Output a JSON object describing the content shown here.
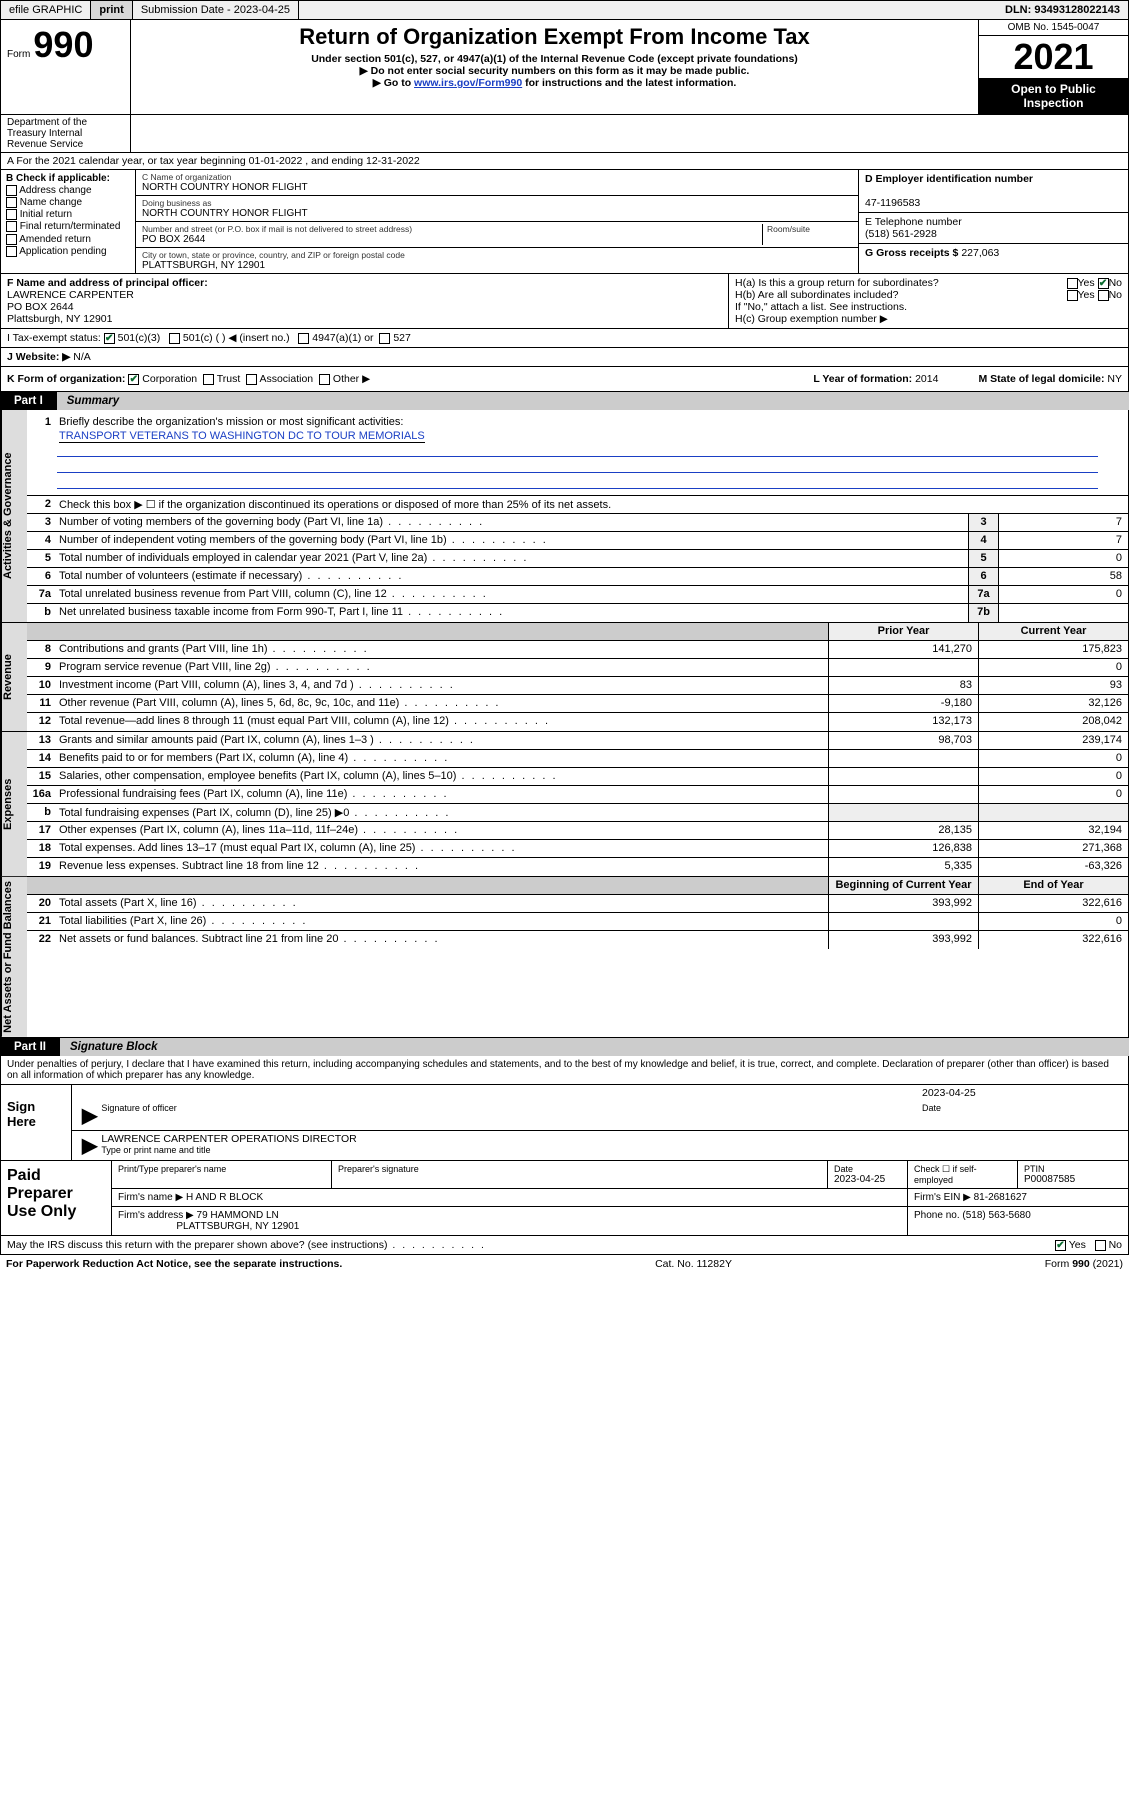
{
  "topbar": {
    "efile_label": "efile GRAPHIC",
    "print_btn": "print",
    "submission_label": "Submission Date - 2023-04-25",
    "dln_label": "DLN: 93493128022143"
  },
  "header": {
    "form_word": "Form",
    "form_number": "990",
    "title": "Return of Organization Exempt From Income Tax",
    "subtitle1": "Under section 501(c), 527, or 4947(a)(1) of the Internal Revenue Code (except private foundations)",
    "subtitle2": "▶ Do not enter social security numbers on this form as it may be made public.",
    "subtitle3_pre": "▶ Go to ",
    "subtitle3_link": "www.irs.gov/Form990",
    "subtitle3_post": " for instructions and the latest information.",
    "omb": "OMB No. 1545-0047",
    "year": "2021",
    "open_public": "Open to Public Inspection",
    "dept": "Department of the Treasury Internal Revenue Service"
  },
  "lineA": "A For the 2021 calendar year, or tax year beginning 01-01-2022   , and ending 12-31-2022",
  "colB": {
    "header": "B Check if applicable:",
    "items": [
      "Address change",
      "Name change",
      "Initial return",
      "Final return/terminated",
      "Amended return",
      "Application pending"
    ]
  },
  "center": {
    "c_label": "C Name of organization",
    "c_name": "NORTH COUNTRY HONOR FLIGHT",
    "dba_label": "Doing business as",
    "dba": "NORTH COUNTRY HONOR FLIGHT",
    "addr_label": "Number and street (or P.O. box if mail is not delivered to street address)",
    "room_label": "Room/suite",
    "addr": "PO BOX 2644",
    "city_label": "City or town, state or province, country, and ZIP or foreign postal code",
    "city": "PLATTSBURGH, NY  12901"
  },
  "right": {
    "d_label": "D Employer identification number",
    "ein": "47-1196583",
    "e_label": "E Telephone number",
    "phone": "(518) 561-2928",
    "g_label": "G Gross receipts $",
    "gross": "227,063"
  },
  "F": {
    "label": "F Name and address of principal officer:",
    "name": "LAWRENCE CARPENTER",
    "addr1": "PO BOX 2644",
    "addr2": "Plattsburgh, NY  12901"
  },
  "H": {
    "a_label": "H(a)  Is this a group return for subordinates?",
    "a_yes": "Yes",
    "a_no": "No",
    "b_label": "H(b)  Are all subordinates included?",
    "b_yes": "Yes",
    "b_no": "No",
    "note": "If \"No,\" attach a list. See instructions.",
    "c_label": "H(c)  Group exemption number ▶"
  },
  "I": {
    "label": "I   Tax-exempt status:",
    "opt1": "501(c)(3)",
    "opt2": "501(c) (   ) ◀ (insert no.)",
    "opt3": "4947(a)(1) or",
    "opt4": "527"
  },
  "J": {
    "label": "J   Website: ▶",
    "value": "N/A"
  },
  "K": {
    "label": "K Form of organization:",
    "opts": [
      "Corporation",
      "Trust",
      "Association",
      "Other ▶"
    ],
    "L_label": "L Year of formation:",
    "L_val": "2014",
    "M_label": "M State of legal domicile:",
    "M_val": "NY"
  },
  "part1": {
    "label": "Part I",
    "title": "Summary"
  },
  "summary": {
    "side_gov": "Activities & Governance",
    "side_rev": "Revenue",
    "side_exp": "Expenses",
    "side_net": "Net Assets or Fund Balances",
    "line1_label": "Briefly describe the organization's mission or most significant activities:",
    "line1_value": "TRANSPORT VETERANS TO WASHINGTON DC TO TOUR MEMORIALS",
    "line2": "Check this box ▶ ☐  if the organization discontinued its operations or disposed of more than 25% of its net assets.",
    "lines_gov": [
      {
        "n": "3",
        "t": "Number of voting members of the governing body (Part VI, line 1a)",
        "box": "3",
        "v": "7"
      },
      {
        "n": "4",
        "t": "Number of independent voting members of the governing body (Part VI, line 1b)",
        "box": "4",
        "v": "7"
      },
      {
        "n": "5",
        "t": "Total number of individuals employed in calendar year 2021 (Part V, line 2a)",
        "box": "5",
        "v": "0"
      },
      {
        "n": "6",
        "t": "Total number of volunteers (estimate if necessary)",
        "box": "6",
        "v": "58"
      },
      {
        "n": "7a",
        "t": "Total unrelated business revenue from Part VIII, column (C), line 12",
        "box": "7a",
        "v": "0"
      },
      {
        "n": "b",
        "t": "Net unrelated business taxable income from Form 990-T, Part I, line 11",
        "box": "7b",
        "v": ""
      }
    ],
    "col_prior": "Prior Year",
    "col_current": "Current Year",
    "lines_rev": [
      {
        "n": "8",
        "t": "Contributions and grants (Part VIII, line 1h)",
        "p": "141,270",
        "c": "175,823"
      },
      {
        "n": "9",
        "t": "Program service revenue (Part VIII, line 2g)",
        "p": "",
        "c": "0"
      },
      {
        "n": "10",
        "t": "Investment income (Part VIII, column (A), lines 3, 4, and 7d )",
        "p": "83",
        "c": "93"
      },
      {
        "n": "11",
        "t": "Other revenue (Part VIII, column (A), lines 5, 6d, 8c, 9c, 10c, and 11e)",
        "p": "-9,180",
        "c": "32,126"
      },
      {
        "n": "12",
        "t": "Total revenue—add lines 8 through 11 (must equal Part VIII, column (A), line 12)",
        "p": "132,173",
        "c": "208,042"
      }
    ],
    "lines_exp": [
      {
        "n": "13",
        "t": "Grants and similar amounts paid (Part IX, column (A), lines 1–3 )",
        "p": "98,703",
        "c": "239,174"
      },
      {
        "n": "14",
        "t": "Benefits paid to or for members (Part IX, column (A), line 4)",
        "p": "",
        "c": "0"
      },
      {
        "n": "15",
        "t": "Salaries, other compensation, employee benefits (Part IX, column (A), lines 5–10)",
        "p": "",
        "c": "0"
      },
      {
        "n": "16a",
        "t": "Professional fundraising fees (Part IX, column (A), line 11e)",
        "p": "",
        "c": "0"
      },
      {
        "n": "b",
        "t": "Total fundraising expenses (Part IX, column (D), line 25) ▶0",
        "p": "shade",
        "c": "shade"
      },
      {
        "n": "17",
        "t": "Other expenses (Part IX, column (A), lines 11a–11d, 11f–24e)",
        "p": "28,135",
        "c": "32,194"
      },
      {
        "n": "18",
        "t": "Total expenses. Add lines 13–17 (must equal Part IX, column (A), line 25)",
        "p": "126,838",
        "c": "271,368"
      },
      {
        "n": "19",
        "t": "Revenue less expenses. Subtract line 18 from line 12",
        "p": "5,335",
        "c": "-63,326"
      }
    ],
    "col_begin": "Beginning of Current Year",
    "col_end": "End of Year",
    "lines_net": [
      {
        "n": "20",
        "t": "Total assets (Part X, line 16)",
        "p": "393,992",
        "c": "322,616"
      },
      {
        "n": "21",
        "t": "Total liabilities (Part X, line 26)",
        "p": "",
        "c": "0"
      },
      {
        "n": "22",
        "t": "Net assets or fund balances. Subtract line 21 from line 20",
        "p": "393,992",
        "c": "322,616"
      }
    ]
  },
  "part2": {
    "label": "Part II",
    "title": "Signature Block"
  },
  "penalties": "Under penalties of perjury, I declare that I have examined this return, including accompanying schedules and statements, and to the best of my knowledge and belief, it is true, correct, and complete. Declaration of preparer (other than officer) is based on all information of which preparer has any knowledge.",
  "sign": {
    "label": "Sign Here",
    "sig_of_officer": "Signature of officer",
    "date": "2023-04-25",
    "date_label": "Date",
    "name_title": "LAWRENCE CARPENTER  OPERATIONS DIRECTOR",
    "type_label": "Type or print name and title"
  },
  "paid": {
    "label": "Paid Preparer Use Only",
    "h_print": "Print/Type preparer's name",
    "h_sig": "Preparer's signature",
    "h_date": "Date",
    "date_val": "2023-04-25",
    "h_check": "Check ☐ if self-employed",
    "h_ptin": "PTIN",
    "ptin": "P00087585",
    "firm_name_label": "Firm's name    ▶",
    "firm_name": "H AND R BLOCK",
    "firm_ein_label": "Firm's EIN ▶",
    "firm_ein": "81-2681627",
    "firm_addr_label": "Firm's address ▶",
    "firm_addr1": "79 HAMMOND LN",
    "firm_addr2": "PLATTSBURGH, NY  12901",
    "phone_label": "Phone no.",
    "phone": "(518) 563-5680"
  },
  "may_irs": {
    "text": "May the IRS discuss this return with the preparer shown above? (see instructions)",
    "yes": "Yes",
    "no": "No"
  },
  "footer": {
    "left": "For Paperwork Reduction Act Notice, see the separate instructions.",
    "mid": "Cat. No. 11282Y",
    "right": "Form 990 (2021)"
  }
}
